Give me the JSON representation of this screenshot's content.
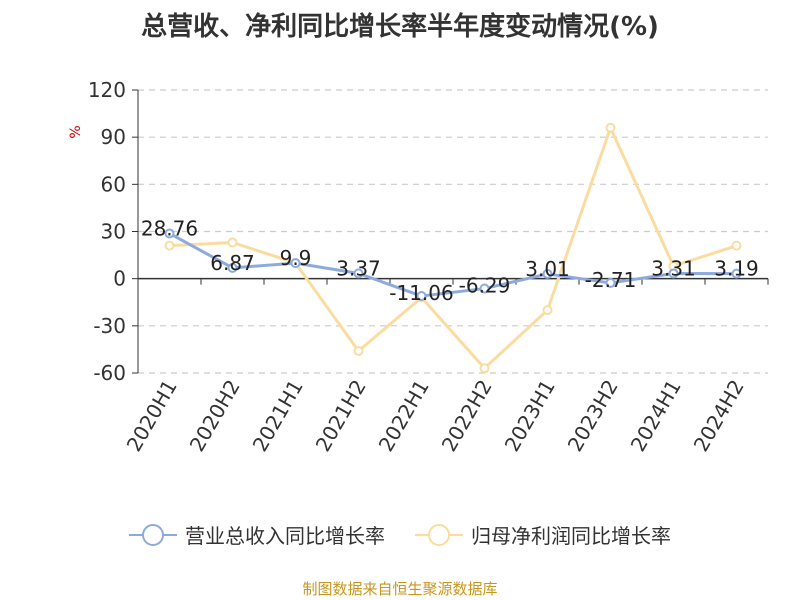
{
  "title": "总营收、净利同比增长率半年度变动情况(%)",
  "source": "制图数据来自恒生聚源数据库",
  "colors": {
    "revenue": "#8eaadc",
    "profit": "#fbdca0",
    "grid": "#cccccc",
    "unit": "#cc0000",
    "source": "#c8961e"
  },
  "chart_data": {
    "type": "line",
    "title": "总营收、净利同比增长率半年度变动情况(%)",
    "ylabel": "%",
    "ylim": [
      -60,
      120
    ],
    "yticks": [
      120,
      90,
      60,
      30,
      0,
      -30,
      -60
    ],
    "grid": true,
    "legend_position": "bottom",
    "categories": [
      "2020H1",
      "2020H2",
      "2021H1",
      "2021H2",
      "2022H1",
      "2022H2",
      "2023H1",
      "2023H2",
      "2024H1",
      "2024H2"
    ],
    "series": [
      {
        "name": "营业总收入同比增长率",
        "values": [
          28.76,
          6.87,
          9.9,
          3.37,
          -11.06,
          -6.29,
          3.01,
          -2.71,
          3.31,
          3.19
        ],
        "labels": [
          "28.76",
          "6.87",
          "9.9",
          "3.37",
          "-11.06",
          "-6.29",
          "3.01",
          "-2.71",
          "3.31",
          "3.19"
        ]
      },
      {
        "name": "归母净利润同比增长率",
        "values": [
          21,
          23,
          10,
          -46,
          -12,
          -57,
          -20,
          96,
          8,
          21
        ]
      }
    ]
  }
}
